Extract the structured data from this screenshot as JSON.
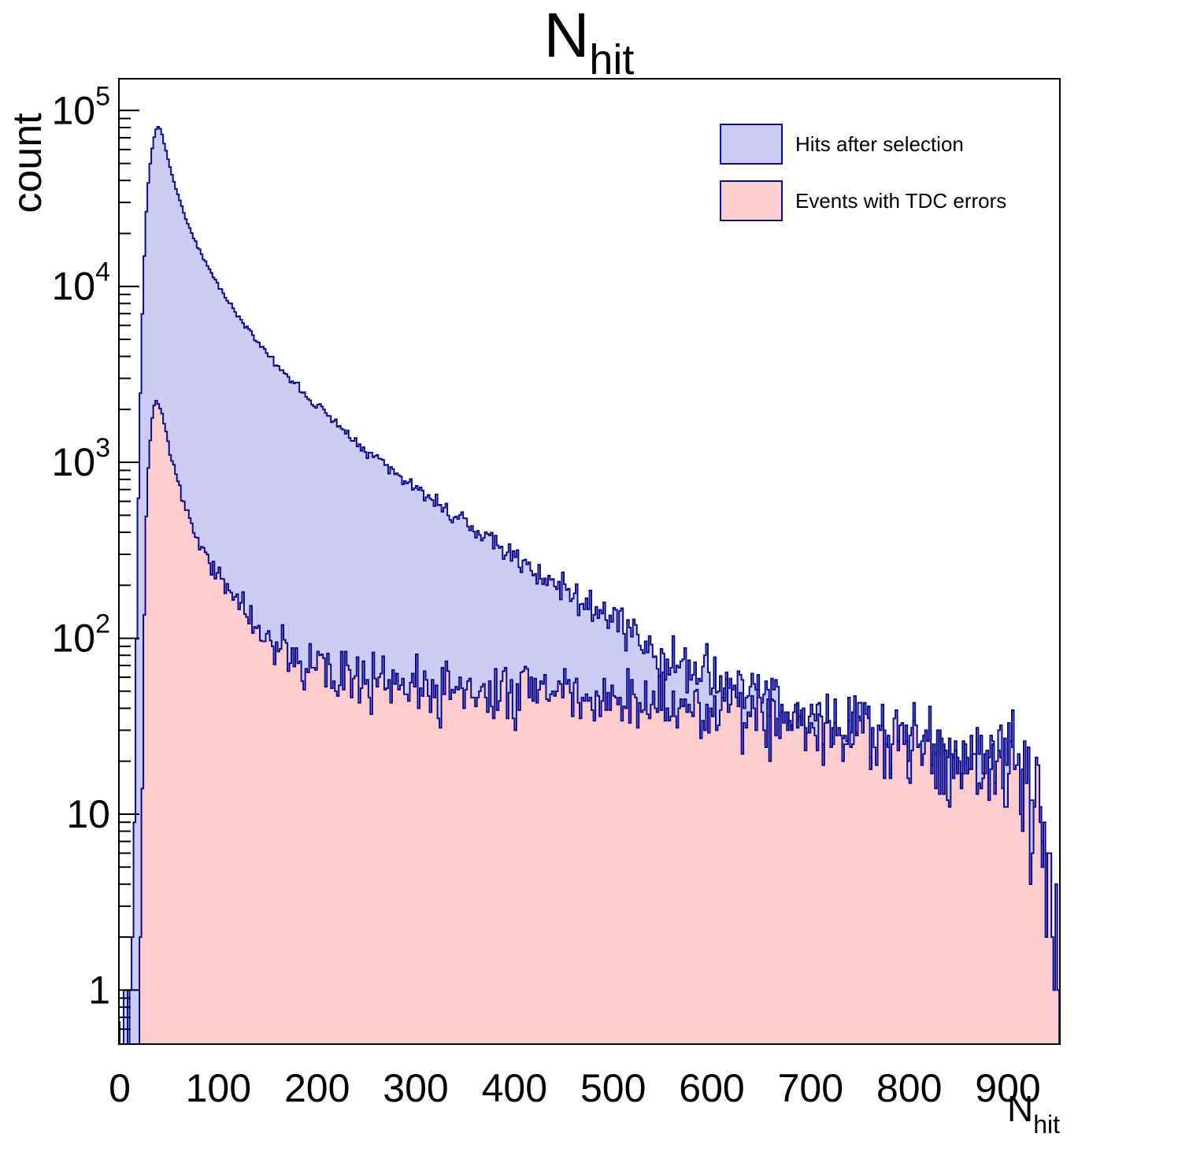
{
  "title": {
    "main": "N",
    "sub": "hit"
  },
  "axes": {
    "y_title": "count",
    "x_title_main": "N",
    "x_title_sub": "hit"
  },
  "legend": {
    "items": [
      {
        "label": "Hits after selection",
        "swatch_fill": "#ccccf5",
        "swatch_border": "#0c0c8f"
      },
      {
        "label": "Events with TDC errors",
        "swatch_fill": "#fdcccc",
        "swatch_border": "#0c0c8f"
      }
    ]
  },
  "colors": {
    "frame": "#000000",
    "background": "#ffffff",
    "hist_line": "#0c0c8f"
  },
  "chart_data": {
    "type": "area",
    "subtype": "overlaid-step-histograms-log-y",
    "title": "N_hit",
    "xlabel": "N_hit",
    "ylabel": "count",
    "grid": false,
    "legend_position": "top-right",
    "x_range": [
      0,
      952
    ],
    "bin_width": 2,
    "x_ticks": [
      0,
      100,
      200,
      300,
      400,
      500,
      600,
      700,
      800,
      900
    ],
    "x_minor_step": 20,
    "y_scale": "log",
    "y_ticks": [
      1,
      10,
      100,
      1000,
      10000,
      100000
    ],
    "ylim": [
      0.5,
      151000
    ],
    "noise": {
      "seed": 3,
      "log10_sigma_coeff": 0.6,
      "sigma_clamp": 0.32
    },
    "series": [
      {
        "name": "Hits after selection",
        "fill": "#ccccf5",
        "line": "#0c0c8f",
        "peak": {
          "x": 37,
          "count": 81000
        },
        "anchors": [
          [
            2,
            0
          ],
          [
            4,
            0.7
          ],
          [
            6,
            1.5
          ],
          [
            8,
            1.2
          ],
          [
            10,
            0.3
          ],
          [
            12,
            0.4
          ],
          [
            14,
            2
          ],
          [
            16,
            40
          ],
          [
            18,
            260
          ],
          [
            20,
            1300
          ],
          [
            22,
            4500
          ],
          [
            24,
            11000
          ],
          [
            26,
            21000
          ],
          [
            28,
            33000
          ],
          [
            30,
            45000
          ],
          [
            32,
            56000
          ],
          [
            34,
            66000
          ],
          [
            36,
            75000
          ],
          [
            38,
            81000
          ],
          [
            40,
            80000
          ],
          [
            42,
            76000
          ],
          [
            44,
            69000
          ],
          [
            46,
            62000
          ],
          [
            48,
            56000
          ],
          [
            50,
            50000
          ],
          [
            53,
            43000
          ],
          [
            56,
            37500
          ],
          [
            60,
            31500
          ],
          [
            65,
            26000
          ],
          [
            70,
            22000
          ],
          [
            75,
            19000
          ],
          [
            80,
            16500
          ],
          [
            85,
            14400
          ],
          [
            90,
            12800
          ],
          [
            95,
            11400
          ],
          [
            100,
            10200
          ],
          [
            110,
            8300
          ],
          [
            120,
            6800
          ],
          [
            130,
            5700
          ],
          [
            140,
            4800
          ],
          [
            150,
            4100
          ],
          [
            160,
            3500
          ],
          [
            170,
            3050
          ],
          [
            180,
            2680
          ],
          [
            190,
            2360
          ],
          [
            200,
            2100
          ],
          [
            210,
            1870
          ],
          [
            220,
            1660
          ],
          [
            230,
            1480
          ],
          [
            240,
            1330
          ],
          [
            250,
            1190
          ],
          [
            260,
            1070
          ],
          [
            270,
            960
          ],
          [
            280,
            870
          ],
          [
            290,
            790
          ],
          [
            300,
            715
          ],
          [
            310,
            650
          ],
          [
            320,
            592
          ],
          [
            330,
            540
          ],
          [
            340,
            492
          ],
          [
            350,
            450
          ],
          [
            360,
            411
          ],
          [
            370,
            376
          ],
          [
            380,
            344
          ],
          [
            390,
            315
          ],
          [
            400,
            289
          ],
          [
            410,
            265
          ],
          [
            420,
            243
          ],
          [
            430,
            223
          ],
          [
            440,
            205
          ],
          [
            450,
            188
          ],
          [
            460,
            173
          ],
          [
            470,
            159
          ],
          [
            480,
            146
          ],
          [
            490,
            135
          ],
          [
            500,
            125
          ],
          [
            510,
            115
          ],
          [
            520,
            106
          ],
          [
            530,
            98
          ],
          [
            540,
            91
          ],
          [
            550,
            84
          ],
          [
            560,
            78
          ],
          [
            570,
            73
          ],
          [
            580,
            68
          ],
          [
            590,
            63
          ],
          [
            600,
            59
          ],
          [
            620,
            52
          ],
          [
            640,
            47
          ],
          [
            660,
            42
          ],
          [
            680,
            38
          ],
          [
            700,
            35
          ],
          [
            720,
            32
          ],
          [
            740,
            29
          ],
          [
            760,
            27
          ],
          [
            780,
            25
          ],
          [
            800,
            24
          ],
          [
            830,
            22
          ],
          [
            860,
            21
          ],
          [
            880,
            20
          ],
          [
            900,
            19
          ],
          [
            910,
            17
          ],
          [
            918,
            14
          ],
          [
            925,
            11
          ],
          [
            931,
            8
          ],
          [
            937,
            5
          ],
          [
            942,
            3
          ],
          [
            946,
            2
          ],
          [
            949,
            1
          ],
          [
            952,
            0
          ]
        ]
      },
      {
        "name": "Events with TDC errors",
        "fill": "#fdcccc",
        "line": "#0c0c8f",
        "peak": {
          "x": 38,
          "count": 2250
        },
        "anchors": [
          [
            16,
            0
          ],
          [
            18,
            0.8
          ],
          [
            20,
            0.8
          ],
          [
            22,
            1.5
          ],
          [
            24,
            60
          ],
          [
            26,
            300
          ],
          [
            28,
            700
          ],
          [
            30,
            1150
          ],
          [
            32,
            1600
          ],
          [
            34,
            1950
          ],
          [
            36,
            2180
          ],
          [
            38,
            2250
          ],
          [
            40,
            2160
          ],
          [
            42,
            1980
          ],
          [
            44,
            1780
          ],
          [
            46,
            1580
          ],
          [
            48,
            1400
          ],
          [
            50,
            1250
          ],
          [
            53,
            1060
          ],
          [
            56,
            910
          ],
          [
            60,
            760
          ],
          [
            65,
            615
          ],
          [
            70,
            510
          ],
          [
            75,
            430
          ],
          [
            80,
            370
          ],
          [
            85,
            322
          ],
          [
            90,
            283
          ],
          [
            95,
            252
          ],
          [
            100,
            226
          ],
          [
            110,
            184
          ],
          [
            120,
            154
          ],
          [
            130,
            131
          ],
          [
            140,
            113
          ],
          [
            150,
            99
          ],
          [
            160,
            89
          ],
          [
            170,
            81
          ],
          [
            180,
            74
          ],
          [
            190,
            69
          ],
          [
            200,
            65
          ],
          [
            220,
            59
          ],
          [
            240,
            56
          ],
          [
            260,
            54
          ],
          [
            280,
            52
          ],
          [
            300,
            51
          ],
          [
            330,
            50
          ],
          [
            360,
            49
          ],
          [
            400,
            47
          ],
          [
            440,
            45
          ],
          [
            480,
            44
          ],
          [
            500,
            43
          ],
          [
            540,
            41
          ],
          [
            580,
            39
          ],
          [
            600,
            38
          ],
          [
            640,
            36
          ],
          [
            680,
            33
          ],
          [
            700,
            31
          ],
          [
            740,
            29
          ],
          [
            780,
            26
          ],
          [
            800,
            25
          ],
          [
            830,
            23
          ],
          [
            860,
            21
          ],
          [
            880,
            20
          ],
          [
            900,
            18
          ],
          [
            910,
            16
          ],
          [
            918,
            13
          ],
          [
            925,
            10
          ],
          [
            931,
            7
          ],
          [
            937,
            5
          ],
          [
            942,
            3
          ],
          [
            946,
            2
          ],
          [
            949,
            1
          ],
          [
            952,
            0
          ]
        ]
      }
    ]
  }
}
